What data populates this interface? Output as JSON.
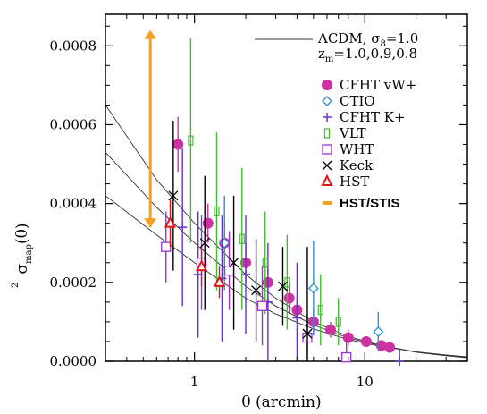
{
  "chart_data": {
    "type": "scatter",
    "xlabel": "θ (arcmin)",
    "ylabel_main": "σ",
    "ylabel_sup": "2",
    "ylabel_sub": "map",
    "ylabel_arg": "(θ)",
    "x_scale": "log",
    "xlim": [
      0.3,
      40
    ],
    "ylim": [
      0,
      0.00088
    ],
    "x_ticks": [
      1,
      10
    ],
    "x_tick_labels": [
      "1",
      "10"
    ],
    "y_ticks": [
      0,
      0.0002,
      0.0004,
      0.0006,
      0.0008
    ],
    "y_tick_labels": [
      "0.0000",
      "0.0002",
      "0.0004",
      "0.0006",
      "0.0008"
    ],
    "grid": false,
    "legend_position": "top-right",
    "model": {
      "label_line1": "ΛCDM, σ",
      "label_line1_sub": "8",
      "label_line1_end": "=1.0",
      "label_line2": "z",
      "label_line2_sub": "m",
      "label_line2_end": "=1.0,0.9,0.8",
      "curves": [
        {
          "x": [
            0.3,
            0.6,
            1,
            2,
            3,
            5,
            8,
            12,
            20,
            30,
            40
          ],
          "y": [
            0.00065,
            0.00046,
            0.00035,
            0.00022,
            0.00016,
            0.0001,
            6.3e-05,
            4.2e-05,
            2.3e-05,
            1.4e-05,
            9e-06
          ]
        },
        {
          "x": [
            0.3,
            0.6,
            1,
            2,
            3,
            5,
            8,
            12,
            20,
            30,
            40
          ],
          "y": [
            0.00053,
            0.00039,
            0.0003,
            0.00019,
            0.00014,
            9.2e-05,
            5.9e-05,
            4.1e-05,
            2.4e-05,
            1.5e-05,
            1e-05
          ]
        },
        {
          "x": [
            0.3,
            0.6,
            1,
            2,
            3,
            5,
            8,
            12,
            20,
            30,
            40
          ],
          "y": [
            0.00042,
            0.00032,
            0.00025,
            0.00016,
            0.00012,
            8.2e-05,
            5.5e-05,
            3.9e-05,
            2.4e-05,
            1.6e-05,
            1.1e-05
          ]
        }
      ]
    },
    "series": [
      {
        "name": "CFHT  vW+",
        "marker": "dot",
        "color": "#cc33a0",
        "points": [
          [
            0.8,
            0.00055,
            7e-05
          ],
          [
            1.2,
            0.00035,
            5e-05
          ],
          [
            1.5,
            0.0003,
            5e-05
          ],
          [
            2.0,
            0.00025,
            5e-05
          ],
          [
            2.7,
            0.0002,
            4e-05
          ],
          [
            3.6,
            0.00016,
            4e-05
          ],
          [
            4.0,
            0.00013,
            3e-05
          ],
          [
            5.0,
            0.0001,
            3e-05
          ],
          [
            6.3,
            8e-05,
            2e-05
          ],
          [
            8.0,
            6e-05,
            2e-05
          ],
          [
            10.2,
            5e-05,
            1e-05
          ],
          [
            12.5,
            4e-05,
            1e-05
          ],
          [
            14.0,
            3.5e-05,
            1e-05
          ]
        ]
      },
      {
        "name": "CTIO",
        "marker": "diamond",
        "color": "#2a8fd6",
        "points": [
          [
            1.5,
            0.0003,
            0.00012
          ],
          [
            5.0,
            0.000185,
            0.00012
          ],
          [
            12.0,
            7.5e-05,
            5e-05
          ]
        ]
      },
      {
        "name": "CFHT  K+",
        "marker": "plus",
        "color": "#6633cc",
        "points": [
          [
            0.85,
            0.00034,
            0.0002
          ],
          [
            1.05,
            0.00022,
            0.00016
          ],
          [
            1.45,
            0.00021,
            0.00016
          ],
          [
            2.0,
            0.00022,
            0.00015
          ],
          [
            2.7,
            0.00015,
            0.00015
          ],
          [
            4.0,
            0.00011,
            0.00014
          ],
          [
            16.0,
            0.0,
            3e-05
          ]
        ]
      },
      {
        "name": "VLT",
        "marker": "square",
        "color": "#44bb33",
        "points": [
          [
            0.95,
            0.00056,
            0.00026
          ],
          [
            1.35,
            0.00038,
            0.0002
          ],
          [
            1.9,
            0.00031,
            0.00018
          ],
          [
            2.6,
            0.00025,
            0.00013
          ],
          [
            3.5,
            0.0002,
            0.00012
          ],
          [
            5.5,
            0.00013,
            9e-05
          ],
          [
            7.0,
            0.0001,
            6e-05
          ]
        ]
      },
      {
        "name": "WHT",
        "marker": "open-square",
        "color": "#9933cc",
        "points": [
          [
            0.68,
            0.00029,
            9e-05
          ],
          [
            1.1,
            0.00025,
            0.00012
          ],
          [
            1.6,
            0.00023,
            0.0001
          ],
          [
            2.5,
            0.00014,
            0.0001
          ],
          [
            4.6,
            6e-05,
            6e-05
          ],
          [
            7.8,
            1e-05,
            5e-05
          ]
        ]
      },
      {
        "name": "Keck",
        "marker": "cross",
        "color": "#000000",
        "points": [
          [
            0.75,
            0.00042,
            0.00019
          ],
          [
            1.15,
            0.0003,
            0.00017
          ],
          [
            1.7,
            0.00025,
            0.00017
          ],
          [
            2.3,
            0.00018,
            0.00013
          ],
          [
            3.3,
            0.00019,
            0.0001
          ],
          [
            4.6,
            7e-05,
            0.00022
          ]
        ]
      },
      {
        "name": "HST",
        "marker": "triangle",
        "color": "#e01818",
        "points": [
          [
            0.72,
            0.00035,
            6e-05
          ],
          [
            1.1,
            0.00024,
            5e-05
          ],
          [
            1.4,
            0.0002,
            4e-05
          ]
        ]
      },
      {
        "name": "HST/STIS",
        "marker": "arrow",
        "color": "#f5a020",
        "points": [
          [
            0.55,
            0.00084,
            0.0005
          ]
        ]
      }
    ]
  }
}
